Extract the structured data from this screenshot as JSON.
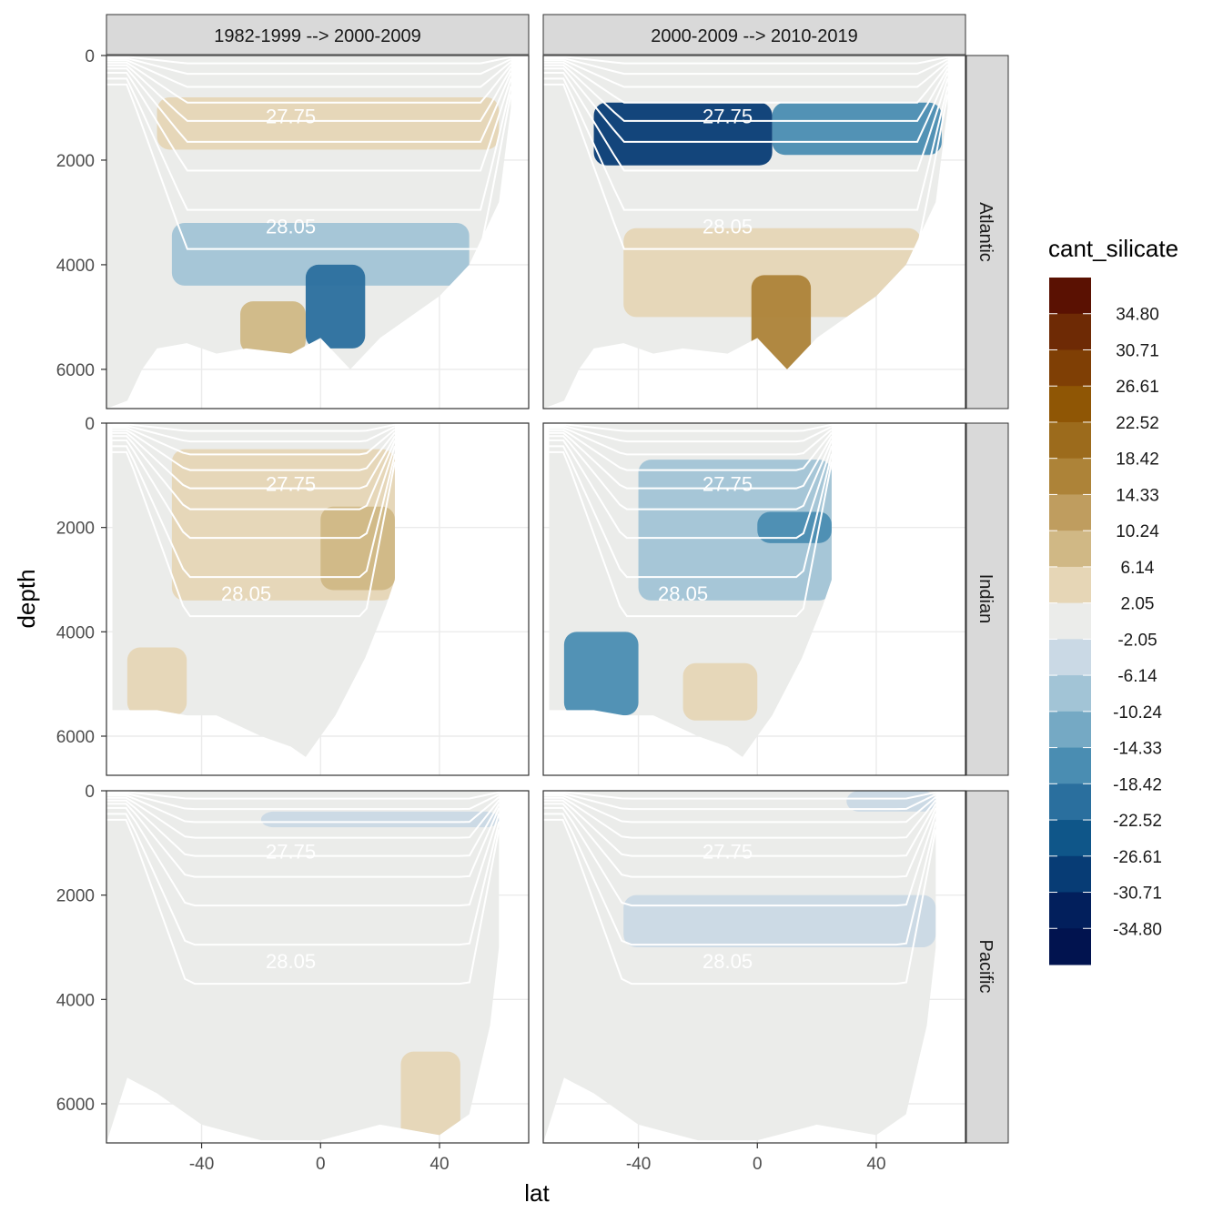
{
  "chart_data": {
    "type": "heatmap",
    "description_free": true,
    "x_label": "lat",
    "y_label": "depth",
    "x_ticks": [
      -40,
      0,
      40
    ],
    "x_range": [
      -72,
      70
    ],
    "y_ticks": [
      0,
      2000,
      4000,
      6000
    ],
    "y_range": [
      0,
      6750
    ],
    "y_reversed": true,
    "columns": [
      "1982-1999 --> 2000-2009",
      "2000-2009 --> 2010-2019"
    ],
    "rows": [
      "Atlantic",
      "Indian",
      "Pacific"
    ],
    "legend": {
      "title": "cant_silicate",
      "labels": [
        "34.80",
        "30.71",
        "26.61",
        "22.52",
        "18.42",
        "14.33",
        "10.24",
        "6.14",
        "2.05",
        "-2.05",
        "-6.14",
        "-10.24",
        "-14.33",
        "-18.42",
        "-22.52",
        "-26.61",
        "-30.71",
        "-34.80"
      ],
      "colors": [
        "#5a1102",
        "#6e2a05",
        "#7f3f05",
        "#8f5605",
        "#9c6b1c",
        "#ad8338",
        "#bf9d5f",
        "#d0b885",
        "#e6d6b6",
        "#ebecea",
        "#cad9e5",
        "#a2c4d6",
        "#75a9c4",
        "#4a8db2",
        "#2a6f9e",
        "#0f5689",
        "#073c75",
        "#021f5c",
        "#01134f"
      ]
    },
    "isopycnal_labels": [
      "27.75",
      "28.05"
    ],
    "panels": [
      {
        "row": "Atlantic",
        "col": 0,
        "lat_range": [
          -72,
          64
        ],
        "bottom_profile": [
          [
            -72,
            6750
          ],
          [
            -65,
            6600
          ],
          [
            -60,
            6000
          ],
          [
            -55,
            5600
          ],
          [
            -45,
            5500
          ],
          [
            -35,
            5700
          ],
          [
            -25,
            5600
          ],
          [
            -10,
            5700
          ],
          [
            0,
            5400
          ],
          [
            10,
            6000
          ],
          [
            20,
            5400
          ],
          [
            30,
            5000
          ],
          [
            40,
            4600
          ],
          [
            50,
            4000
          ],
          [
            60,
            2800
          ],
          [
            64,
            1000
          ]
        ]
      },
      {
        "row": "Atlantic",
        "col": 1,
        "lat_range": [
          -72,
          64
        ],
        "bottom_profile": [
          [
            -72,
            6750
          ],
          [
            -65,
            6600
          ],
          [
            -60,
            6000
          ],
          [
            -55,
            5600
          ],
          [
            -45,
            5500
          ],
          [
            -35,
            5700
          ],
          [
            -25,
            5600
          ],
          [
            -10,
            5700
          ],
          [
            0,
            5400
          ],
          [
            10,
            6000
          ],
          [
            20,
            5400
          ],
          [
            30,
            5000
          ],
          [
            40,
            4600
          ],
          [
            50,
            4000
          ],
          [
            60,
            2800
          ],
          [
            64,
            1000
          ]
        ]
      },
      {
        "row": "Indian",
        "col": 0,
        "lat_range": [
          -70,
          25
        ],
        "bottom_profile": [
          [
            -70,
            5500
          ],
          [
            -55,
            5500
          ],
          [
            -45,
            5600
          ],
          [
            -35,
            5600
          ],
          [
            -20,
            6000
          ],
          [
            -10,
            6200
          ],
          [
            -5,
            6400
          ],
          [
            5,
            5600
          ],
          [
            15,
            4500
          ],
          [
            22,
            3500
          ],
          [
            25,
            3000
          ]
        ]
      },
      {
        "row": "Indian",
        "col": 1,
        "lat_range": [
          -70,
          25
        ],
        "bottom_profile": [
          [
            -70,
            5500
          ],
          [
            -55,
            5500
          ],
          [
            -45,
            5600
          ],
          [
            -35,
            5600
          ],
          [
            -20,
            6000
          ],
          [
            -10,
            6200
          ],
          [
            -5,
            6400
          ],
          [
            5,
            5600
          ],
          [
            15,
            4500
          ],
          [
            22,
            3500
          ],
          [
            25,
            3000
          ]
        ]
      },
      {
        "row": "Pacific",
        "col": 0,
        "lat_range": [
          -72,
          60
        ],
        "bottom_profile": [
          [
            -72,
            6750
          ],
          [
            -65,
            5500
          ],
          [
            -55,
            5800
          ],
          [
            -40,
            6400
          ],
          [
            -20,
            6700
          ],
          [
            0,
            6700
          ],
          [
            20,
            6400
          ],
          [
            40,
            6600
          ],
          [
            50,
            6200
          ],
          [
            57,
            4500
          ],
          [
            60,
            3000
          ]
        ]
      },
      {
        "row": "Pacific",
        "col": 1,
        "lat_range": [
          -72,
          60
        ],
        "bottom_profile": [
          [
            -72,
            6750
          ],
          [
            -65,
            5500
          ],
          [
            -55,
            5800
          ],
          [
            -40,
            6400
          ],
          [
            -20,
            6700
          ],
          [
            0,
            6700
          ],
          [
            20,
            6400
          ],
          [
            40,
            6600
          ],
          [
            50,
            6200
          ],
          [
            57,
            4500
          ],
          [
            60,
            3000
          ]
        ]
      }
    ],
    "anomaly_regions": [
      {
        "panel": 0,
        "color_index": 8,
        "lat": [
          -55,
          60
        ],
        "depth": [
          800,
          1800
        ]
      },
      {
        "panel": 0,
        "color_index": 11,
        "lat": [
          -50,
          50
        ],
        "depth": [
          3200,
          4400
        ]
      },
      {
        "panel": 0,
        "color_index": 14,
        "lat": [
          -5,
          15
        ],
        "depth": [
          4000,
          5600
        ]
      },
      {
        "panel": 0,
        "color_index": 7,
        "lat": [
          -27,
          -5
        ],
        "depth": [
          4700,
          5700
        ]
      },
      {
        "panel": 1,
        "color_index": 16,
        "lat": [
          -55,
          5
        ],
        "depth": [
          900,
          2100
        ]
      },
      {
        "panel": 1,
        "color_index": 13,
        "lat": [
          5,
          62
        ],
        "depth": [
          900,
          1900
        ]
      },
      {
        "panel": 1,
        "color_index": 8,
        "lat": [
          -45,
          55
        ],
        "depth": [
          3300,
          5000
        ]
      },
      {
        "panel": 1,
        "color_index": 5,
        "lat": [
          -2,
          18
        ],
        "depth": [
          4200,
          6000
        ]
      },
      {
        "panel": 2,
        "color_index": 8,
        "lat": [
          -50,
          25
        ],
        "depth": [
          500,
          3400
        ]
      },
      {
        "panel": 2,
        "color_index": 7,
        "lat": [
          0,
          25
        ],
        "depth": [
          1600,
          3200
        ]
      },
      {
        "panel": 2,
        "color_index": 8,
        "lat": [
          -65,
          -45
        ],
        "depth": [
          4300,
          5600
        ]
      },
      {
        "panel": 3,
        "color_index": 11,
        "lat": [
          -40,
          25
        ],
        "depth": [
          700,
          3400
        ]
      },
      {
        "panel": 3,
        "color_index": 13,
        "lat": [
          0,
          25
        ],
        "depth": [
          1700,
          2300
        ]
      },
      {
        "panel": 3,
        "color_index": 13,
        "lat": [
          -65,
          -40
        ],
        "depth": [
          4000,
          5600
        ]
      },
      {
        "panel": 3,
        "color_index": 8,
        "lat": [
          -25,
          0
        ],
        "depth": [
          4600,
          5700
        ]
      },
      {
        "panel": 4,
        "color_index": 10,
        "lat": [
          -20,
          60
        ],
        "depth": [
          400,
          700
        ]
      },
      {
        "panel": 4,
        "color_index": 8,
        "lat": [
          27,
          47
        ],
        "depth": [
          5000,
          6700
        ]
      },
      {
        "panel": 5,
        "color_index": 10,
        "lat": [
          -45,
          60
        ],
        "depth": [
          2000,
          3000
        ]
      },
      {
        "panel": 5,
        "color_index": 10,
        "lat": [
          30,
          60
        ],
        "depth": [
          0,
          400
        ]
      }
    ]
  }
}
